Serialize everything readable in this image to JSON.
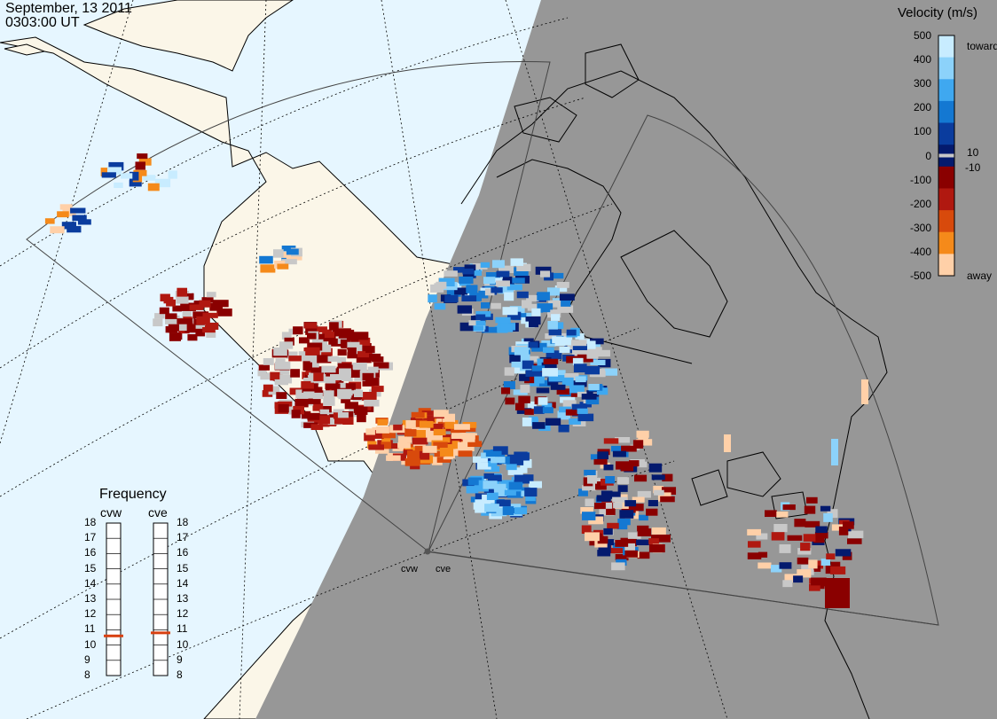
{
  "header": {
    "date": "September, 13 2011",
    "time": "0303:00 UT"
  },
  "colorbar": {
    "title": "Velocity (m/s)",
    "ticks": [
      "500",
      "400",
      "300",
      "200",
      "100",
      "0",
      "-100",
      "-200",
      "-300",
      "-400",
      "-500"
    ],
    "inner_labels": {
      "pos": "10",
      "neg": "-10"
    },
    "toward_label": "toward",
    "away_label": "away",
    "colors": [
      "#c8ecff",
      "#8cd2fa",
      "#3fa8f0",
      "#1478d2",
      "#0a3c9e",
      "#041a6e",
      "#8a0000",
      "#b01810",
      "#d84a0c",
      "#f58a1a",
      "#ffd0a8"
    ],
    "ground_scatter_color": "#c8c8c8"
  },
  "frequency_panel": {
    "title": "Frequency",
    "radars": [
      {
        "name": "cvw",
        "value_mhz": 10.6
      },
      {
        "name": "cve",
        "value_mhz": 10.8
      }
    ],
    "scale": [
      "18",
      "17",
      "16",
      "15",
      "14",
      "13",
      "12",
      "11",
      "10",
      "9",
      "8"
    ],
    "marker_color": "#d84010"
  },
  "radar_sites": [
    {
      "name": "cvw"
    },
    {
      "name": "cve"
    }
  ],
  "map": {
    "ocean_color": "#e6f6ff",
    "land_color": "#fbf6e8",
    "night_color": "#979797"
  }
}
